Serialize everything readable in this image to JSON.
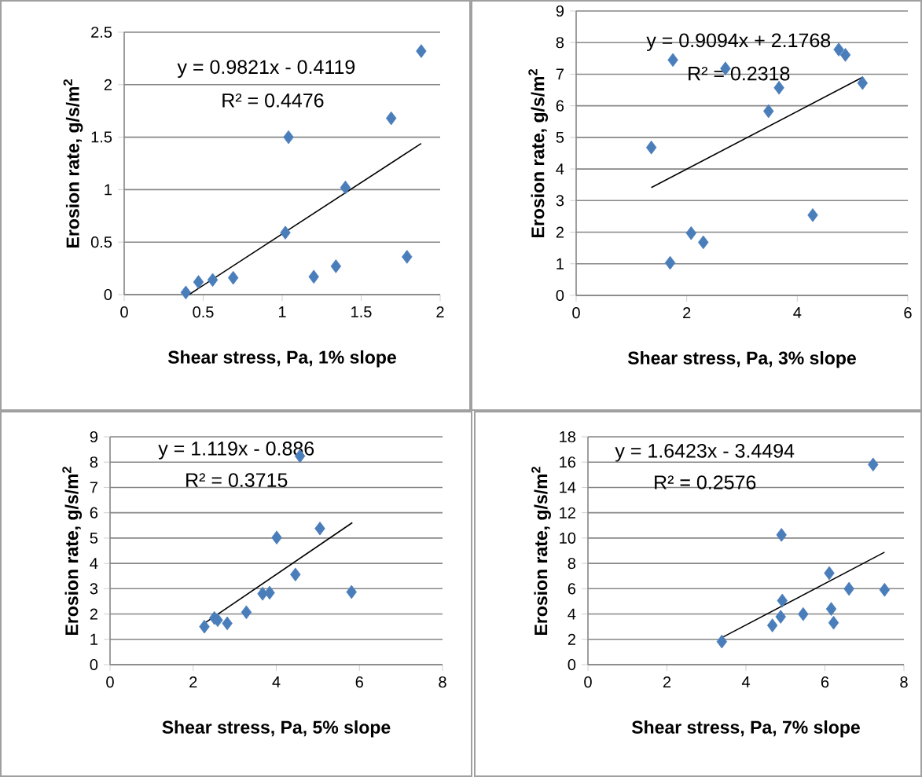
{
  "chart_data": [
    {
      "type": "scatter",
      "xlabel": "Shear stress, Pa, 1% slope",
      "ylabel": "Erosion rate, g/s/m$^{2}$",
      "xlim": [
        0,
        2
      ],
      "xticks": [
        0,
        0.5,
        1,
        1.5,
        2
      ],
      "ylim": [
        0,
        2.5
      ],
      "yticks": [
        0,
        0.5,
        1,
        1.5,
        2,
        2.5
      ],
      "grid": "y",
      "marker": "diamond",
      "annotations": [
        "y = 0.9821x - 0.4119",
        "R² = 0.4476"
      ],
      "series": [
        {
          "color": "#4a7ebb",
          "x": [
            0.39,
            0.47,
            0.56,
            0.69,
            1.02,
            1.04,
            1.2,
            1.34,
            1.4,
            1.69,
            1.79,
            1.88
          ],
          "values": [
            0.02,
            0.12,
            0.14,
            0.16,
            0.59,
            1.5,
            0.17,
            0.27,
            1.02,
            1.68,
            0.36,
            2.32
          ]
        },
        {
          "type": "line",
          "color": "#000000",
          "marker": "none",
          "x": [
            0.41,
            1.88
          ],
          "values": [
            0.0,
            1.44
          ]
        }
      ]
    },
    {
      "type": "scatter",
      "xlabel": "Shear stress, Pa, 3% slope",
      "ylabel": "Erosion rate, g/s/m$^{2}$",
      "xlim": [
        0,
        6
      ],
      "xticks": [
        0,
        2,
        4,
        6
      ],
      "ylim": [
        0,
        9
      ],
      "yticks": [
        0,
        1,
        2,
        3,
        4,
        5,
        6,
        7,
        8,
        9
      ],
      "grid": "y",
      "marker": "diamond",
      "annotations": [
        "y = 0.9094x + 2.1768",
        "R² = 0.2318"
      ],
      "series": [
        {
          "color": "#4a7ebb",
          "x": [
            1.36,
            1.75,
            1.7,
            2.08,
            2.3,
            2.7,
            3.48,
            3.67,
            4.28,
            4.75,
            4.87,
            5.18
          ],
          "values": [
            4.68,
            7.45,
            1.03,
            1.97,
            1.68,
            7.18,
            5.83,
            6.57,
            2.54,
            7.78,
            7.61,
            6.72
          ]
        },
        {
          "type": "line",
          "color": "#000000",
          "marker": "none",
          "x": [
            1.36,
            5.19
          ],
          "values": [
            3.41,
            6.91
          ]
        }
      ]
    },
    {
      "type": "scatter",
      "xlabel": "Shear stress, Pa, 5% slope",
      "ylabel": "Erosion rate, g/s/m$^{2}$",
      "xlim": [
        0,
        8
      ],
      "xticks": [
        0,
        2,
        4,
        6,
        8
      ],
      "ylim": [
        0,
        9
      ],
      "yticks": [
        0,
        1,
        2,
        3,
        4,
        5,
        6,
        7,
        8,
        9
      ],
      "grid": "y",
      "marker": "diamond",
      "annotations": [
        "y = 1.119x - 0.886",
        "R² = 0.3715"
      ],
      "series": [
        {
          "color": "#4a7ebb",
          "x": [
            2.27,
            2.51,
            2.59,
            2.82,
            3.28,
            3.67,
            3.84,
            4.01,
            4.46,
            4.57,
            5.05,
            5.81
          ],
          "values": [
            1.5,
            1.84,
            1.76,
            1.63,
            2.07,
            2.8,
            2.84,
            5.02,
            3.56,
            8.24,
            5.38,
            2.87
          ]
        },
        {
          "type": "line",
          "color": "#000000",
          "marker": "none",
          "x": [
            2.27,
            5.83
          ],
          "values": [
            1.63,
            5.61
          ]
        }
      ]
    },
    {
      "type": "scatter",
      "xlabel": "Shear stress, Pa, 7% slope",
      "ylabel": "Erosion rate, g/s/m$^{2}$",
      "xlim": [
        0,
        8
      ],
      "xticks": [
        0,
        2,
        4,
        6,
        8
      ],
      "ylim": [
        0,
        18
      ],
      "yticks": [
        0,
        2,
        4,
        6,
        8,
        10,
        12,
        14,
        16,
        18
      ],
      "grid": "y",
      "marker": "diamond",
      "annotations": [
        "y = 1.6423x - 3.4494",
        "R² = 0.2576"
      ],
      "series": [
        {
          "color": "#4a7ebb",
          "x": [
            3.39,
            4.67,
            4.88,
            4.92,
            4.9,
            5.45,
            6.11,
            6.16,
            6.22,
            6.61,
            7.22,
            7.51
          ],
          "values": [
            1.82,
            3.1,
            3.78,
            5.06,
            10.25,
            3.99,
            7.23,
            4.4,
            3.31,
            5.99,
            15.81,
            5.91
          ]
        },
        {
          "type": "line",
          "color": "#000000",
          "marker": "none",
          "x": [
            3.39,
            7.51
          ],
          "values": [
            2.13,
            8.88
          ]
        }
      ]
    }
  ]
}
